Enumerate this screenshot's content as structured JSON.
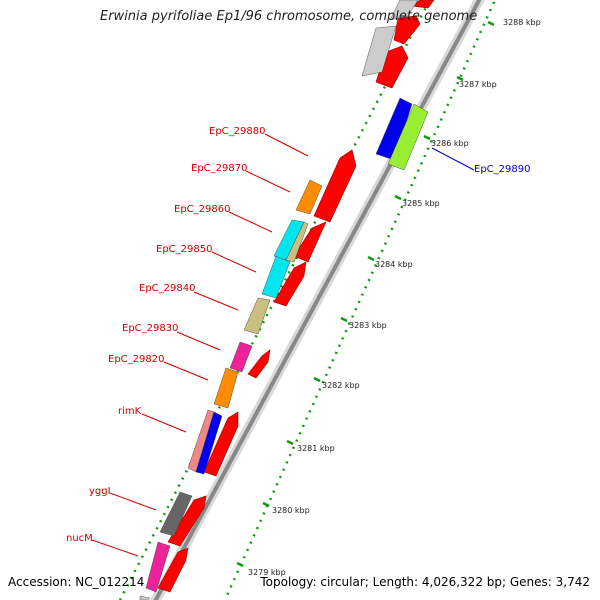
{
  "title": "Erwinia pyrifoliae Ep1/96 chromosome, complete genome",
  "footer": {
    "accession": "Accession: NC_012214",
    "topology": "Topology: circular; Length: 4,026,322 bp; Genes: 3,742"
  },
  "scale_labels": [
    "3288 kbp",
    "3287 kbp",
    "3286 kbp",
    "3285 kbp",
    "3284 kbp",
    "3283 kbp",
    "3282 kbp",
    "3281 kbp",
    "3280 kbp",
    "3279 kbp"
  ],
  "gene_labels": [
    {
      "text": "EpC_29880",
      "color": "#cc0000"
    },
    {
      "text": "EpC_29870",
      "color": "#cc0000"
    },
    {
      "text": "EpC_29860",
      "color": "#cc0000"
    },
    {
      "text": "EpC_29850",
      "color": "#cc0000"
    },
    {
      "text": "EpC_29840",
      "color": "#cc0000"
    },
    {
      "text": "EpC_29830",
      "color": "#cc0000"
    },
    {
      "text": "EpC_29820",
      "color": "#cc0000"
    },
    {
      "text": "rimK",
      "color": "#cc0000"
    },
    {
      "text": "yggI",
      "color": "#cc0000"
    },
    {
      "text": "nucM",
      "color": "#cc0000"
    },
    {
      "text": "EpC_29890",
      "color": "#0000cc"
    }
  ],
  "colors": {
    "backbone": "#8c8c8c",
    "cds": "#ff0000",
    "tick": "#119911",
    "blue": "#0000ee",
    "green": "#99ee33",
    "orange": "#ff8c00",
    "cyan": "#00e5ee",
    "khaki": "#c8bf80",
    "magenta": "#ee2299",
    "gray": "#666666",
    "lightgray": "#cccccc",
    "pink": "#ee8888"
  }
}
